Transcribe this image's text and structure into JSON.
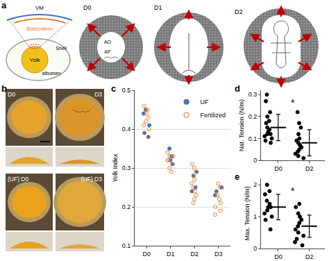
{
  "panel_labels": [
    "a",
    "b",
    "c",
    "d",
    "e"
  ],
  "diagram": {
    "egg": {
      "membrane": "VM",
      "blastoderm": "Blastoderm",
      "yolk": "Yolk",
      "shell": "Shell",
      "albumen": "albumen"
    },
    "stages": [
      {
        "label": "D0",
        "inner": [
          "AO",
          "AP"
        ]
      },
      {
        "label": "D1"
      },
      {
        "label": "D2"
      }
    ]
  },
  "photos": {
    "labels": [
      {
        "day": "D0"
      },
      {
        "day": "D3"
      },
      {
        "prefix": "(UF)",
        "day": "D0"
      },
      {
        "prefix": "(UF)",
        "day": "D3"
      }
    ]
  },
  "chart_data": [
    {
      "type": "scatter",
      "y_label": "Yolk Index",
      "categories": [
        "D0",
        "D1",
        "D2",
        "D3"
      ],
      "series": [
        {
          "name": "UF",
          "color": "#4472c4",
          "marker": "filled",
          "values": [
            [
              0.45,
              0.44,
              0.41,
              0.39,
              0.38
            ],
            [
              0.35,
              0.33,
              0.32,
              0.31
            ],
            [
              0.29,
              0.28,
              0.25,
              0.24
            ],
            [
              0.25,
              0.24,
              0.23
            ]
          ]
        },
        {
          "name": "Fertilized",
          "color": "#ed7d31",
          "marker": "open",
          "values": [
            [
              0.46,
              0.45,
              0.45,
              0.44,
              0.43,
              0.42,
              0.41,
              0.4,
              0.39,
              0.38
            ],
            [
              0.34,
              0.33,
              0.33,
              0.32,
              0.32,
              0.31,
              0.3,
              0.29
            ],
            [
              0.31,
              0.3,
              0.29,
              0.28,
              0.27,
              0.26,
              0.25,
              0.24,
              0.23,
              0.22,
              0.21
            ],
            [
              0.26,
              0.25,
              0.24,
              0.23,
              0.22,
              0.21,
              0.2,
              0.19,
              0.18
            ]
          ]
        }
      ],
      "ylim": [
        0.1,
        0.5
      ],
      "yticks": [
        0.1,
        0.2,
        0.3,
        0.4,
        0.5
      ],
      "grid": true,
      "legend": "top right"
    },
    {
      "type": "scatter",
      "y_label": "Nat. Tension (N/m)",
      "categories": [
        "D0",
        "D2"
      ],
      "values": [
        [
          0.3,
          0.27,
          0.22,
          0.2,
          0.18,
          0.17,
          0.15,
          0.14,
          0.13,
          0.12,
          0.12,
          0.11,
          0.1,
          0.09,
          0.08
        ],
        [
          0.22,
          0.17,
          0.15,
          0.12,
          0.1,
          0.09,
          0.08,
          0.07,
          0.06,
          0.05,
          0.04,
          0.03,
          0.02,
          0.01
        ]
      ],
      "means": [
        0.15,
        0.08
      ],
      "errors": [
        0.06,
        0.06
      ],
      "color": "#000000",
      "marker": "filled",
      "annotations": [
        "*"
      ],
      "ylim": [
        0,
        0.32
      ],
      "yticks": [
        0,
        0.1,
        0.2,
        0.3
      ],
      "grid": false
    },
    {
      "type": "scatter",
      "y_label": "Max. Tension (N/m)",
      "categories": [
        "D0",
        "D2"
      ],
      "values": [
        [
          2.0,
          1.8,
          1.7,
          1.5,
          1.4,
          1.3,
          1.3,
          1.2,
          1.1,
          1.0,
          0.9,
          0.6
        ],
        [
          1.4,
          1.3,
          1.1,
          1.0,
          0.9,
          0.8,
          0.7,
          0.6,
          0.5,
          0.4,
          0.3,
          0.2,
          0.1
        ]
      ],
      "means": [
        1.3,
        0.7
      ],
      "errors": [
        0.4,
        0.35
      ],
      "color": "#000000",
      "marker": "filled",
      "annotations": [
        "*"
      ],
      "ylim": [
        0,
        2.2
      ],
      "yticks": [
        0,
        1,
        2
      ],
      "grid": false
    }
  ]
}
